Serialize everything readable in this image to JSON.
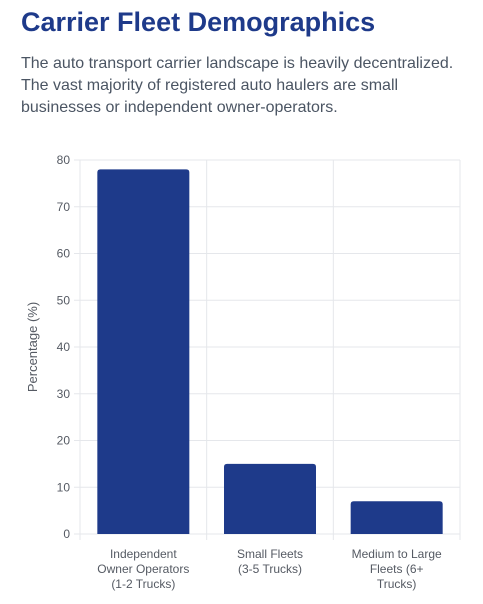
{
  "header": {
    "title": "Carrier Fleet Demographics",
    "description": "The auto transport carrier landscape is heavily decentralized. The vast majority of registered auto haulers are small businesses or independent owner-operators."
  },
  "chart_data": {
    "type": "bar",
    "categories": [
      [
        "Independent",
        "Owner Operators",
        "(1-2 Trucks)"
      ],
      [
        "Small Fleets",
        "(3-5 Trucks)"
      ],
      [
        "Medium to Large",
        "Fleets (6+",
        "Trucks)"
      ]
    ],
    "values": [
      78,
      15,
      7
    ],
    "ylabel": "Percentage (%)",
    "xlabel": "",
    "ylim": [
      0,
      80
    ],
    "yticks": [
      0,
      10,
      20,
      30,
      40,
      50,
      60,
      70,
      80
    ],
    "grid": true,
    "legend": "none",
    "bar_color": "#1e3a8a",
    "grid_color": "#e5e7eb"
  }
}
